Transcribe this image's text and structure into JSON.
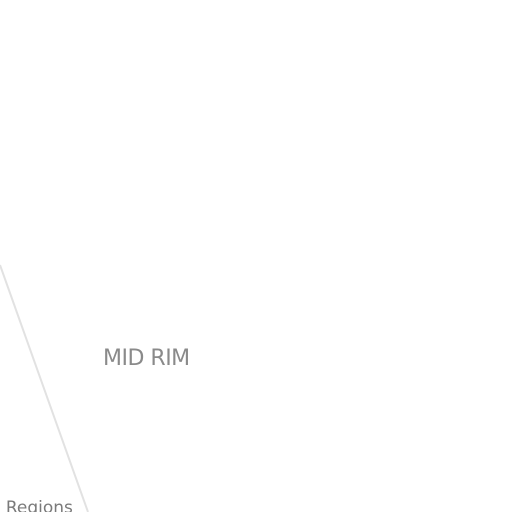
{
  "map": {
    "background_color": "#ffffff",
    "boundary_color": "#e0e0e0",
    "regions": [
      {
        "label": "MID RIM",
        "color": "#8a8a8a"
      }
    ],
    "edge_labels": [
      {
        "text": "e Regions",
        "color": "#7a7a7a"
      }
    ]
  }
}
